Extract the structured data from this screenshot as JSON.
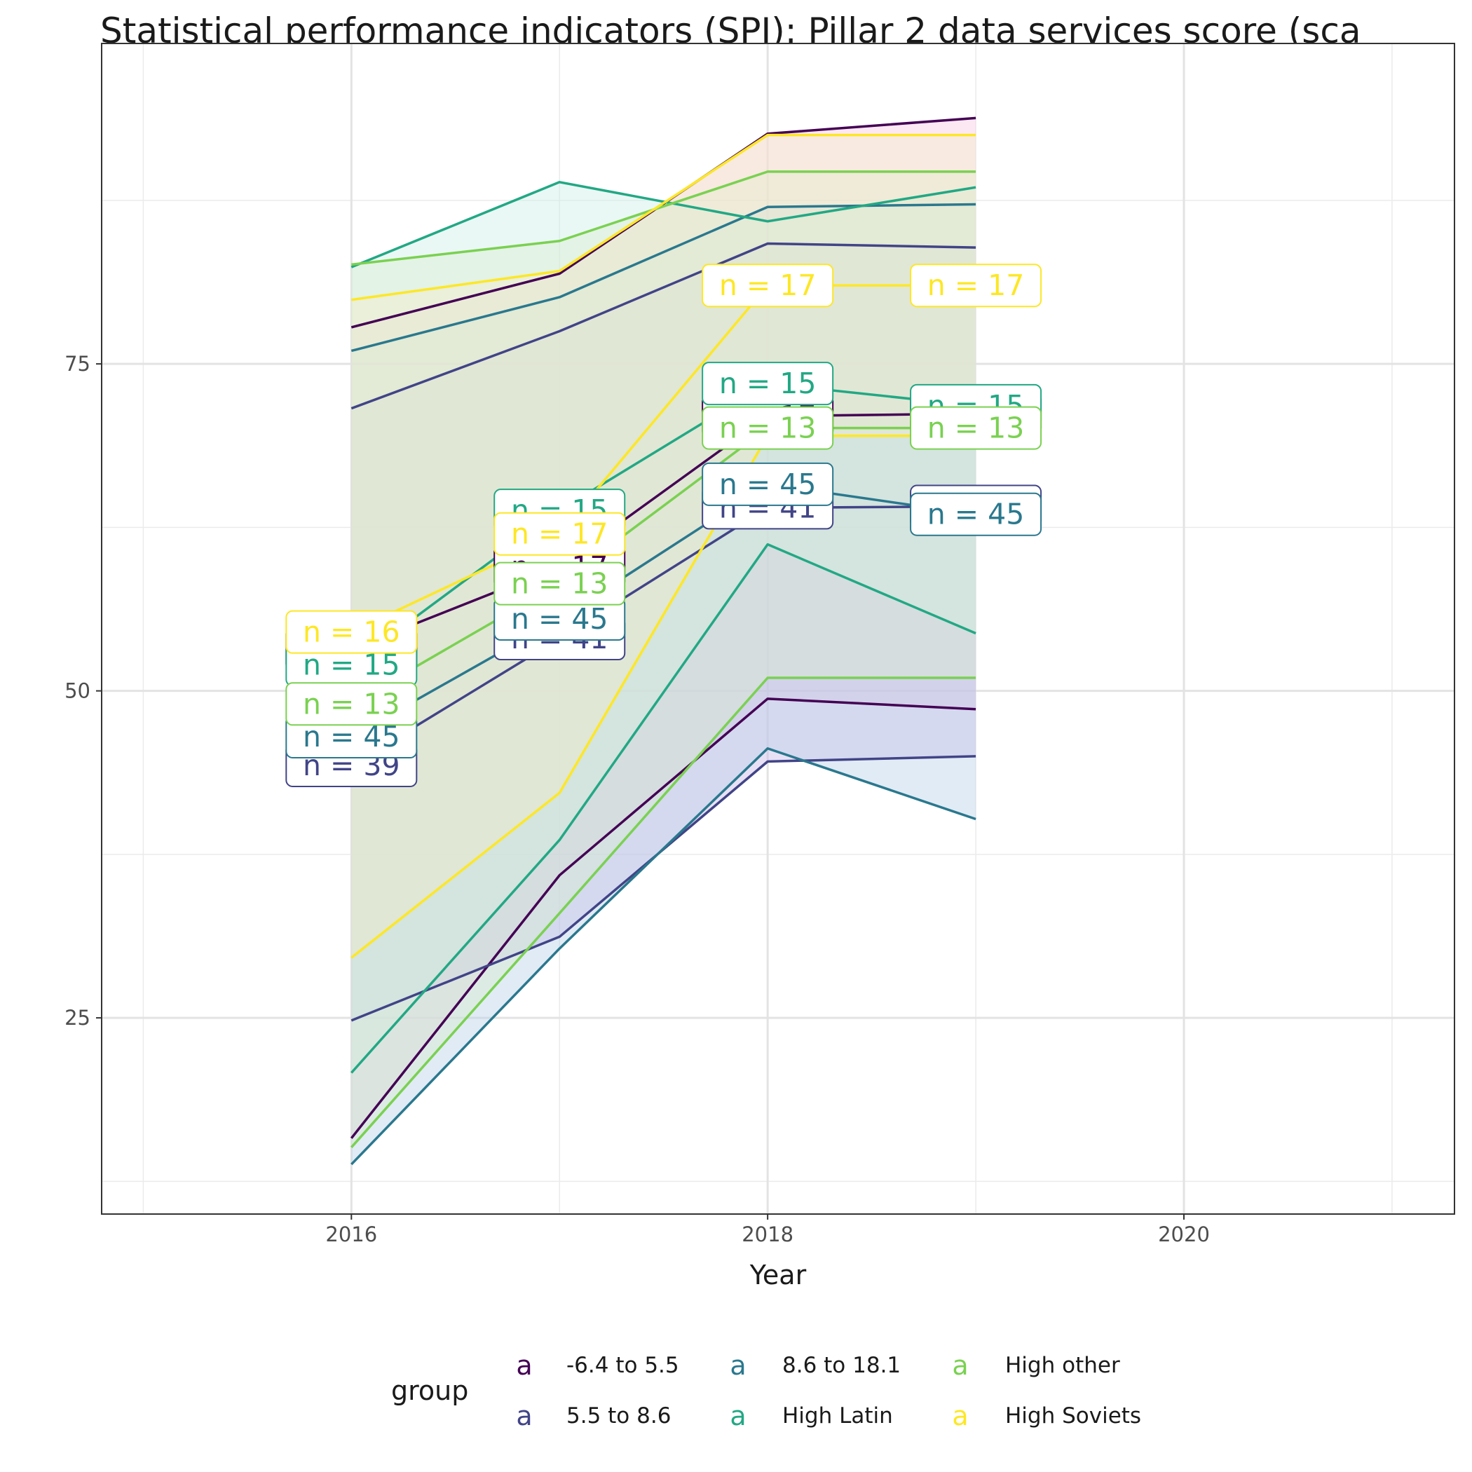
{
  "chart_data": {
    "type": "line",
    "title": "Statistical performance indicators (SPI): Pillar 2 data services score (sca",
    "xlabel": "Year",
    "ylabel": "",
    "xlim": [
      2014.8,
      2021.3
    ],
    "ylim": [
      10,
      99.5
    ],
    "x_ticks": [
      2016,
      2018,
      2020
    ],
    "y_ticks": [
      25,
      50,
      75
    ],
    "x_minor": [
      2015,
      2017,
      2019,
      2021
    ],
    "y_minor": [
      12.5,
      37.5,
      62.5,
      87.5
    ],
    "grid": true,
    "legend": {
      "title": "group",
      "position": "bottom",
      "key_glyph": "a",
      "entries": [
        "-6.4 to 5.5",
        "5.5 to 8.6",
        "8.6 to 18.1",
        "High Latin",
        "High other",
        "High Soviets"
      ]
    },
    "colors": {
      "-6.4 to 5.5": "#440154",
      "5.5 to 8.6": "#414487",
      "8.6 to 18.1": "#2A788E",
      "High Latin": "#22A884",
      "High other": "#7AD151",
      "High Soviets": "#FDE725"
    },
    "x": [
      2016,
      2017,
      2018,
      2019
    ],
    "series": [
      {
        "name": "-6.4 to 5.5",
        "color": "#440154",
        "fill": "#F8C8E0",
        "mean": [
          53.2,
          59.5,
          71.0,
          71.2
        ],
        "upper": [
          77.8,
          81.9,
          92.6,
          93.8
        ],
        "lower": [
          15.8,
          35.9,
          49.4,
          48.6
        ],
        "n_labels": [
          {
            "x": 2016,
            "text": "n = 16"
          },
          {
            "x": 2017,
            "text": "n = 17"
          },
          {
            "x": 2018,
            "text": "n = 17"
          },
          {
            "x": 2019,
            "text": "n = 17"
          }
        ]
      },
      {
        "name": "5.5 to 8.6",
        "color": "#414487",
        "fill": "#C9B8E6",
        "mean": [
          44.3,
          54.0,
          64.0,
          64.1
        ],
        "upper": [
          71.6,
          77.5,
          84.2,
          83.9
        ],
        "lower": [
          24.8,
          31.2,
          44.6,
          45.0
        ],
        "n_labels": [
          {
            "x": 2016,
            "text": "n = 39"
          },
          {
            "x": 2017,
            "text": "n = 41"
          },
          {
            "x": 2018,
            "text": "n = 41"
          },
          {
            "x": 2019,
            "text": "n = 41"
          }
        ]
      },
      {
        "name": "8.6 to 18.1",
        "color": "#2A788E",
        "fill": "#B7CFE8",
        "mean": [
          46.5,
          55.5,
          65.8,
          63.5
        ],
        "upper": [
          76.0,
          80.1,
          87.0,
          87.2
        ],
        "lower": [
          13.8,
          30.3,
          45.6,
          40.2
        ],
        "n_labels": [
          {
            "x": 2016,
            "text": "n = 45"
          },
          {
            "x": 2017,
            "text": "n = 45"
          },
          {
            "x": 2018,
            "text": "n = 45"
          },
          {
            "x": 2019,
            "text": "n = 45"
          }
        ]
      },
      {
        "name": "High Latin",
        "color": "#22A884",
        "fill": "#CDEFE6",
        "mean": [
          52.0,
          63.8,
          73.5,
          71.8
        ],
        "upper": [
          82.4,
          88.9,
          85.9,
          88.5
        ],
        "lower": [
          20.8,
          38.6,
          61.2,
          54.4
        ],
        "n_labels": [
          {
            "x": 2016,
            "text": "n = 15"
          },
          {
            "x": 2017,
            "text": "n = 15"
          },
          {
            "x": 2018,
            "text": "n = 15"
          },
          {
            "x": 2019,
            "text": "n = 15"
          }
        ]
      },
      {
        "name": "High other",
        "color": "#7AD151",
        "fill": "#D8EDCF",
        "mean": [
          49.0,
          58.2,
          70.1,
          70.1
        ],
        "upper": [
          82.6,
          84.4,
          89.7,
          89.7
        ],
        "lower": [
          15.1,
          33.0,
          51.0,
          51.0
        ],
        "n_labels": [
          {
            "x": 2016,
            "text": "n = 13"
          },
          {
            "x": 2017,
            "text": "n = 13"
          },
          {
            "x": 2018,
            "text": "n = 13"
          },
          {
            "x": 2019,
            "text": "n = 13"
          }
        ]
      },
      {
        "name": "High Soviets",
        "color": "#FDE725",
        "fill": "#F3EBC8",
        "mean": [
          54.5,
          62.0,
          81.0,
          81.0
        ],
        "upper": [
          79.9,
          82.1,
          92.5,
          92.5
        ],
        "lower": [
          29.6,
          42.2,
          69.5,
          69.5
        ],
        "n_labels": [
          {
            "x": 2016,
            "text": "n = 16"
          },
          {
            "x": 2017,
            "text": "n = 17"
          },
          {
            "x": 2018,
            "text": "n = 17"
          },
          {
            "x": 2019,
            "text": "n = 17"
          }
        ]
      }
    ]
  }
}
